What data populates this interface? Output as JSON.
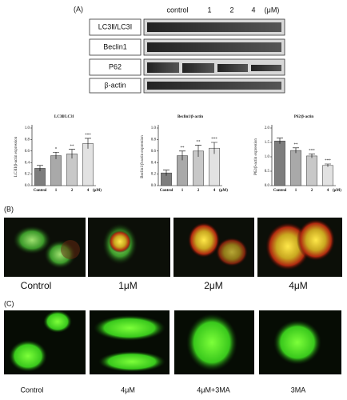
{
  "panel_labels": [
    "(A)",
    "(B)",
    "(C)"
  ],
  "blot": {
    "doses": [
      "control",
      "1",
      "2",
      "4",
      "(μM)"
    ],
    "rows": [
      "LC3Ⅱ/LC3Ⅰ",
      "Beclin1",
      "P62",
      "β-actin"
    ]
  },
  "chart_data": [
    {
      "type": "bar",
      "title": "LC3Ⅱ/LC3Ⅰ",
      "y_label": "LC3II/β-actin expression",
      "categories": [
        "Control",
        "1",
        "2",
        "4"
      ],
      "unit_label": "(μM)",
      "values": [
        0.3,
        0.52,
        0.55,
        0.73
      ],
      "errors": [
        0.05,
        0.06,
        0.08,
        0.09
      ],
      "significance": [
        null,
        "*",
        "**",
        "***"
      ],
      "colors": [
        "#7d7d7d",
        "#a9a9a9",
        "#c8c8c8",
        "#e2e2e2"
      ],
      "ylim": [
        0,
        1.0
      ],
      "yticks": [
        {
          "value": 0,
          "label": "0.0"
        },
        0.2,
        0.4,
        0.6,
        0.8,
        {
          "value": 1,
          "label": "1.0"
        }
      ]
    },
    {
      "type": "bar",
      "title": "Beclin1/β-actin",
      "y_label": "Beclin1/β-actin expression",
      "categories": [
        "Control",
        "1",
        "2",
        "4"
      ],
      "unit_label": "(μM)",
      "values": [
        0.22,
        0.52,
        0.6,
        0.65
      ],
      "errors": [
        0.05,
        0.08,
        0.1,
        0.1
      ],
      "significance": [
        null,
        "**",
        "**",
        "***"
      ],
      "colors": [
        "#7d7d7d",
        "#a9a9a9",
        "#c8c8c8",
        "#e2e2e2"
      ],
      "ylim": [
        0,
        1.0
      ],
      "yticks": [
        {
          "value": 0,
          "label": "0.0"
        },
        0.2,
        0.4,
        0.6,
        0.8,
        {
          "value": 1,
          "label": "1.0"
        }
      ]
    },
    {
      "type": "bar",
      "title": "P62/β-actin",
      "y_label": "P62/β-actin expression",
      "categories": [
        "Control",
        "1",
        "2",
        "4"
      ],
      "unit_label": "(μM)",
      "values": [
        1.55,
        1.22,
        1.03,
        0.7
      ],
      "errors": [
        0.1,
        0.09,
        0.07,
        0.05
      ],
      "significance": [
        null,
        "**",
        "***",
        "***"
      ],
      "colors": [
        "#7d7d7d",
        "#a9a9a9",
        "#c8c8c8",
        "#e2e2e2"
      ],
      "ylim": [
        0,
        2.0
      ],
      "yticks": [
        {
          "value": 0,
          "label": "0.0"
        },
        0.5,
        {
          "value": 1,
          "label": "1.0"
        },
        1.5,
        {
          "value": 2,
          "label": "2.0"
        }
      ]
    }
  ],
  "panel_b": {
    "labels": [
      "Control",
      "1μM",
      "2μM",
      "4μM"
    ]
  },
  "panel_c": {
    "labels": [
      "Control",
      "4μM",
      "4μM+3MA",
      "3MA"
    ]
  }
}
